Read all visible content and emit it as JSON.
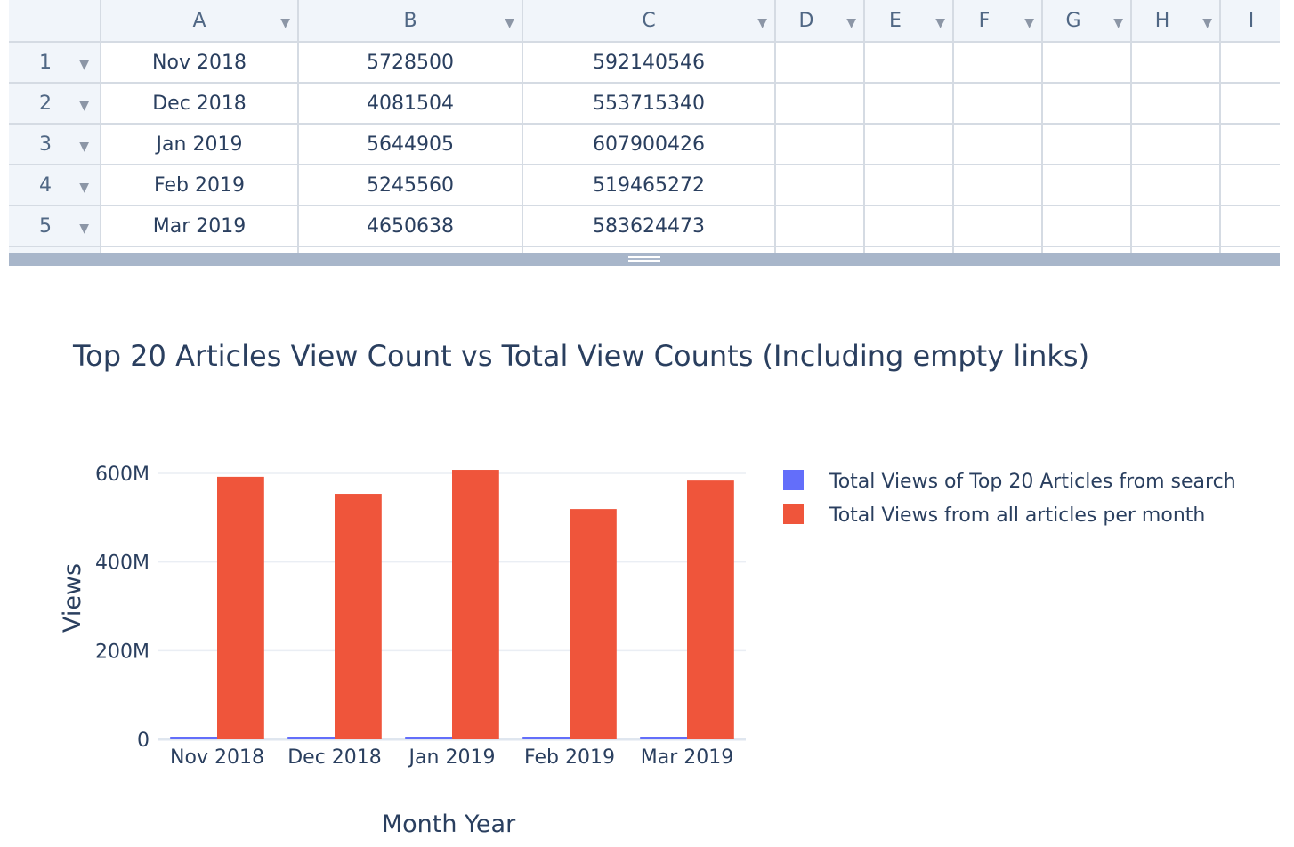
{
  "sheet": {
    "columns": [
      "A",
      "B",
      "C",
      "D",
      "E",
      "F",
      "G",
      "H",
      "I"
    ],
    "rows": [
      {
        "num": "1",
        "cells": [
          "Nov 2018",
          "5728500",
          "592140546",
          "",
          "",
          "",
          "",
          "",
          ""
        ]
      },
      {
        "num": "2",
        "cells": [
          "Dec 2018",
          "4081504",
          "553715340",
          "",
          "",
          "",
          "",
          "",
          ""
        ]
      },
      {
        "num": "3",
        "cells": [
          "Jan 2019",
          "5644905",
          "607900426",
          "",
          "",
          "",
          "",
          "",
          ""
        ]
      },
      {
        "num": "4",
        "cells": [
          "Feb 2019",
          "5245560",
          "519465272",
          "",
          "",
          "",
          "",
          "",
          ""
        ]
      },
      {
        "num": "5",
        "cells": [
          "Mar 2019",
          "4650638",
          "583624473",
          "",
          "",
          "",
          "",
          "",
          ""
        ]
      }
    ],
    "arrow_icon": "dropdown-arrow-icon"
  },
  "chart_data": {
    "type": "bar",
    "title": "Top 20 Articles View Count vs Total View Counts (Including empty links)",
    "xlabel": "Month Year",
    "ylabel": "Views",
    "categories": [
      "Nov 2018",
      "Dec 2018",
      "Jan 2019",
      "Feb 2019",
      "Mar 2019"
    ],
    "series": [
      {
        "name": "Total Views of Top 20 Articles from search",
        "color": "#636efa",
        "values": [
          5728500,
          4081504,
          5644905,
          5245560,
          4650638
        ]
      },
      {
        "name": "Total Views from all articles per month",
        "color": "#ef553b",
        "values": [
          592140546,
          553715340,
          607900426,
          519465272,
          583624473
        ]
      }
    ],
    "ylim": [
      0,
      620000000
    ],
    "yticks": [
      0,
      200000000,
      400000000,
      600000000
    ],
    "ytick_labels": [
      "0",
      "200M",
      "400M",
      "600M"
    ],
    "grid": true,
    "legend": "top-right"
  }
}
